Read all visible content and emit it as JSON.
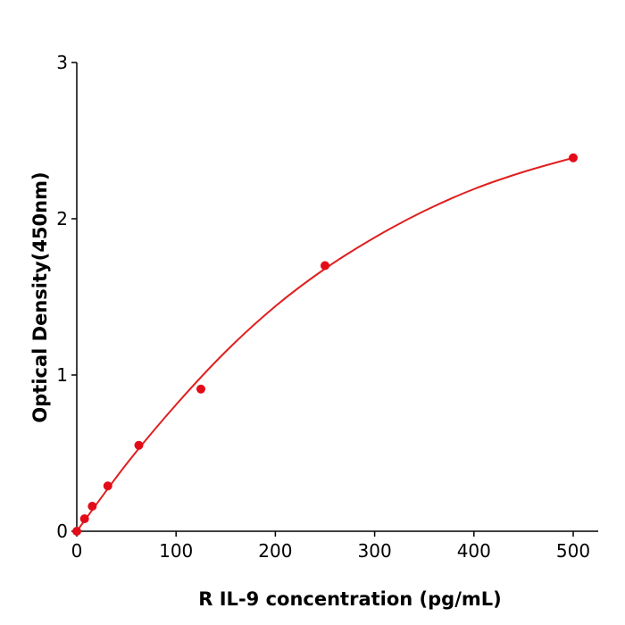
{
  "chart_data": {
    "type": "scatter",
    "title": "",
    "xlabel": "R  IL-9 concentration (pg/mL)",
    "ylabel": "Optical Density(450nm)",
    "xlim": [
      0,
      525
    ],
    "ylim": [
      0,
      3
    ],
    "x_ticks": [
      "0",
      "100",
      "200",
      "300",
      "400",
      "500"
    ],
    "y_ticks": [
      "0",
      "1",
      "2",
      "3"
    ],
    "grid": false,
    "series": [
      {
        "points": [
          {
            "x": 0,
            "y": 0.0
          },
          {
            "x": 7.8,
            "y": 0.08
          },
          {
            "x": 15.6,
            "y": 0.16
          },
          {
            "x": 31.25,
            "y": 0.29
          },
          {
            "x": 62.5,
            "y": 0.55
          },
          {
            "x": 125,
            "y": 0.91
          },
          {
            "x": 250,
            "y": 1.7
          },
          {
            "x": 500,
            "y": 2.39
          }
        ],
        "fit_curve": [
          {
            "x": 0,
            "y": 0.0
          },
          {
            "x": 50,
            "y": 0.43
          },
          {
            "x": 100,
            "y": 0.81
          },
          {
            "x": 150,
            "y": 1.15
          },
          {
            "x": 200,
            "y": 1.44
          },
          {
            "x": 250,
            "y": 1.68
          },
          {
            "x": 300,
            "y": 1.88
          },
          {
            "x": 350,
            "y": 2.05
          },
          {
            "x": 400,
            "y": 2.19
          },
          {
            "x": 450,
            "y": 2.3
          },
          {
            "x": 500,
            "y": 2.39
          }
        ]
      }
    ],
    "colors": {
      "series": "#e01f1f",
      "point": "#e30b17",
      "axis": "#000000"
    }
  }
}
